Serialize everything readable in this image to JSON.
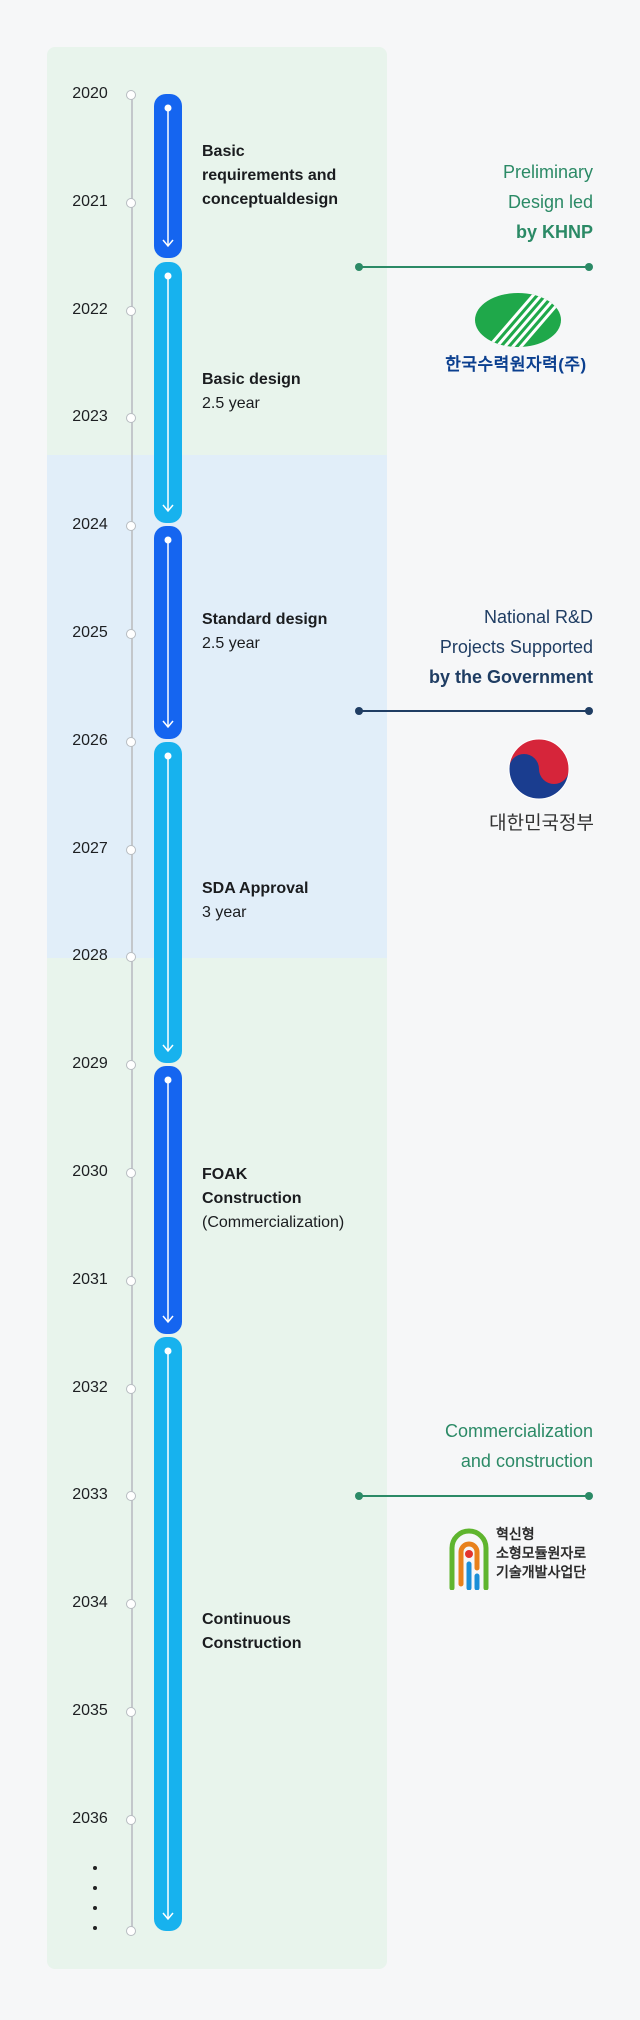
{
  "timeline": {
    "years": [
      "2020",
      "2021",
      "2022",
      "2023",
      "2024",
      "2025",
      "2026",
      "2027",
      "2028",
      "2029",
      "2030",
      "2031",
      "2032",
      "2033",
      "2034",
      "2035",
      "2036"
    ]
  },
  "phases": [
    {
      "lines": [
        "Basic",
        "requirements and",
        "conceptualdesign"
      ],
      "sub": "",
      "color": "#1565f0"
    },
    {
      "lines": [
        "Basic design"
      ],
      "sub": "2.5 year",
      "color": "#17b2ee"
    },
    {
      "lines": [
        "Standard design"
      ],
      "sub": "2.5 year",
      "color": "#1565f0"
    },
    {
      "lines": [
        "SDA Approval"
      ],
      "sub": "3 year",
      "color": "#17b2ee"
    },
    {
      "lines": [
        "FOAK",
        "Construction"
      ],
      "sub": "(Commercialization)",
      "color": "#1565f0"
    },
    {
      "lines": [
        "Continuous",
        "Construction"
      ],
      "sub": "",
      "color": "#17b2ee"
    }
  ],
  "leads": [
    {
      "lines": [
        "Preliminary",
        "Design led"
      ],
      "bold": "by KHNP",
      "color": "#2b8a66",
      "logo_text": "한국수력원자력(주)"
    },
    {
      "lines": [
        "National R&D",
        "Projects Supported"
      ],
      "bold": "by the Government",
      "color": "#1f3d63",
      "logo_text": "대한민국정부"
    },
    {
      "lines": [
        "Commercialization",
        "and construction"
      ],
      "bold": "",
      "color": "#2b8a66",
      "logo_text": [
        "혁신형",
        "소형모듈원자로",
        "기술개발사업단"
      ]
    }
  ],
  "colors": {
    "green_panel": "#e8f4ec",
    "blue_panel": "#e1eef9",
    "dark_bar": "#1565f0",
    "light_bar": "#17b2ee"
  }
}
